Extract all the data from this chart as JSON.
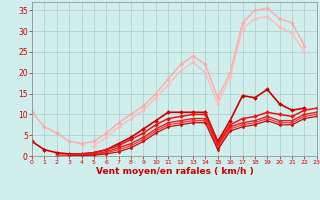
{
  "xlabel": "Vent moyen/en rafales ( km/h )",
  "xlim": [
    0,
    23
  ],
  "ylim": [
    0,
    37
  ],
  "yticks": [
    0,
    5,
    10,
    15,
    20,
    25,
    30,
    35
  ],
  "xticks": [
    0,
    1,
    2,
    3,
    4,
    5,
    6,
    7,
    8,
    9,
    10,
    11,
    12,
    13,
    14,
    15,
    16,
    17,
    18,
    19,
    20,
    21,
    22,
    23
  ],
  "bg_color": "#d0eeec",
  "grid_color": "#aaccca",
  "series": [
    {
      "x": [
        0,
        1,
        2,
        3,
        4,
        5,
        6,
        7,
        8,
        9,
        10,
        11,
        12,
        13,
        14,
        15,
        16,
        17,
        18,
        19,
        20,
        21,
        22,
        23
      ],
      "y": [
        10.5,
        7.0,
        5.5,
        3.5,
        3.0,
        3.5,
        5.5,
        8.0,
        10.0,
        12.0,
        15.0,
        18.5,
        22.0,
        24.0,
        22.0,
        14.0,
        20.0,
        32.0,
        35.0,
        35.5,
        33.0,
        32.0,
        26.5,
        null
      ],
      "color": "#ffaaaa",
      "lw": 1.0,
      "marker": "D",
      "ms": 2.0
    },
    {
      "x": [
        0,
        1,
        2,
        3,
        4,
        5,
        6,
        7,
        8,
        9,
        10,
        11,
        12,
        13,
        14,
        15,
        16,
        17,
        18,
        19,
        20,
        21,
        22,
        23
      ],
      "y": [
        null,
        null,
        null,
        null,
        null,
        2.5,
        4.5,
        7.0,
        9.0,
        11.0,
        14.0,
        17.0,
        20.5,
        22.5,
        20.0,
        12.5,
        19.0,
        30.5,
        33.0,
        33.5,
        31.0,
        29.5,
        25.0,
        null
      ],
      "color": "#ffbbbb",
      "lw": 1.0,
      "marker": "D",
      "ms": 2.0
    },
    {
      "x": [
        0,
        1,
        2,
        3,
        4,
        5,
        6,
        7,
        8,
        9,
        10,
        11,
        12,
        13,
        14,
        15,
        16,
        17,
        18,
        19,
        20,
        21,
        22,
        23
      ],
      "y": [
        3.5,
        1.5,
        0.8,
        0.5,
        0.5,
        0.8,
        1.5,
        3.0,
        4.5,
        6.5,
        8.5,
        10.5,
        10.5,
        10.5,
        10.5,
        3.5,
        8.5,
        14.5,
        14.0,
        16.0,
        12.5,
        11.0,
        11.5,
        null
      ],
      "color": "#cc0000",
      "lw": 1.2,
      "marker": "D",
      "ms": 2.0
    },
    {
      "x": [
        0,
        1,
        2,
        3,
        4,
        5,
        6,
        7,
        8,
        9,
        10,
        11,
        12,
        13,
        14,
        15,
        16,
        17,
        18,
        19,
        20,
        21,
        22,
        23
      ],
      "y": [
        null,
        null,
        null,
        0.3,
        0.5,
        0.8,
        1.5,
        2.5,
        4.0,
        5.5,
        7.5,
        9.0,
        9.5,
        10.0,
        10.0,
        3.0,
        7.5,
        9.0,
        9.5,
        10.5,
        10.0,
        9.5,
        11.0,
        11.5
      ],
      "color": "#ee1111",
      "lw": 1.1,
      "marker": "D",
      "ms": 2.0
    },
    {
      "x": [
        0,
        1,
        2,
        3,
        4,
        5,
        6,
        7,
        8,
        9,
        10,
        11,
        12,
        13,
        14,
        15,
        16,
        17,
        18,
        19,
        20,
        21,
        22,
        23
      ],
      "y": [
        null,
        null,
        0.2,
        0.2,
        0.3,
        0.5,
        1.0,
        2.0,
        3.0,
        4.5,
        6.5,
        8.0,
        8.5,
        9.0,
        9.0,
        2.5,
        7.0,
        8.0,
        8.5,
        9.5,
        8.5,
        8.5,
        10.0,
        10.5
      ],
      "color": "#dd2222",
      "lw": 1.0,
      "marker": "D",
      "ms": 1.8
    },
    {
      "x": [
        0,
        1,
        2,
        3,
        4,
        5,
        6,
        7,
        8,
        9,
        10,
        11,
        12,
        13,
        14,
        15,
        16,
        17,
        18,
        19,
        20,
        21,
        22,
        23
      ],
      "y": [
        null,
        null,
        0.1,
        0.1,
        0.2,
        0.3,
        0.8,
        1.5,
        2.5,
        4.0,
        6.0,
        7.5,
        8.0,
        8.5,
        8.5,
        2.0,
        6.5,
        7.5,
        8.0,
        9.0,
        8.0,
        8.0,
        9.5,
        10.0
      ],
      "color": "#ff3333",
      "lw": 0.9,
      "marker": "D",
      "ms": 1.8
    },
    {
      "x": [
        0,
        1,
        2,
        3,
        4,
        5,
        6,
        7,
        8,
        9,
        10,
        11,
        12,
        13,
        14,
        15,
        16,
        17,
        18,
        19,
        20,
        21,
        22,
        23
      ],
      "y": [
        null,
        null,
        null,
        0.05,
        0.1,
        0.2,
        0.5,
        1.0,
        2.0,
        3.5,
        5.5,
        7.0,
        7.5,
        8.0,
        8.0,
        1.5,
        6.0,
        7.0,
        7.5,
        8.5,
        7.5,
        7.5,
        9.0,
        9.5
      ],
      "color": "#bb1111",
      "lw": 0.9,
      "marker": "D",
      "ms": 1.5
    }
  ],
  "tick_color": "#cc0000",
  "label_color": "#cc0000",
  "axis_color": "#888888",
  "xlabel_fontsize": 6.5,
  "tick_fontsize_y": 5.5,
  "tick_fontsize_x": 4.5
}
